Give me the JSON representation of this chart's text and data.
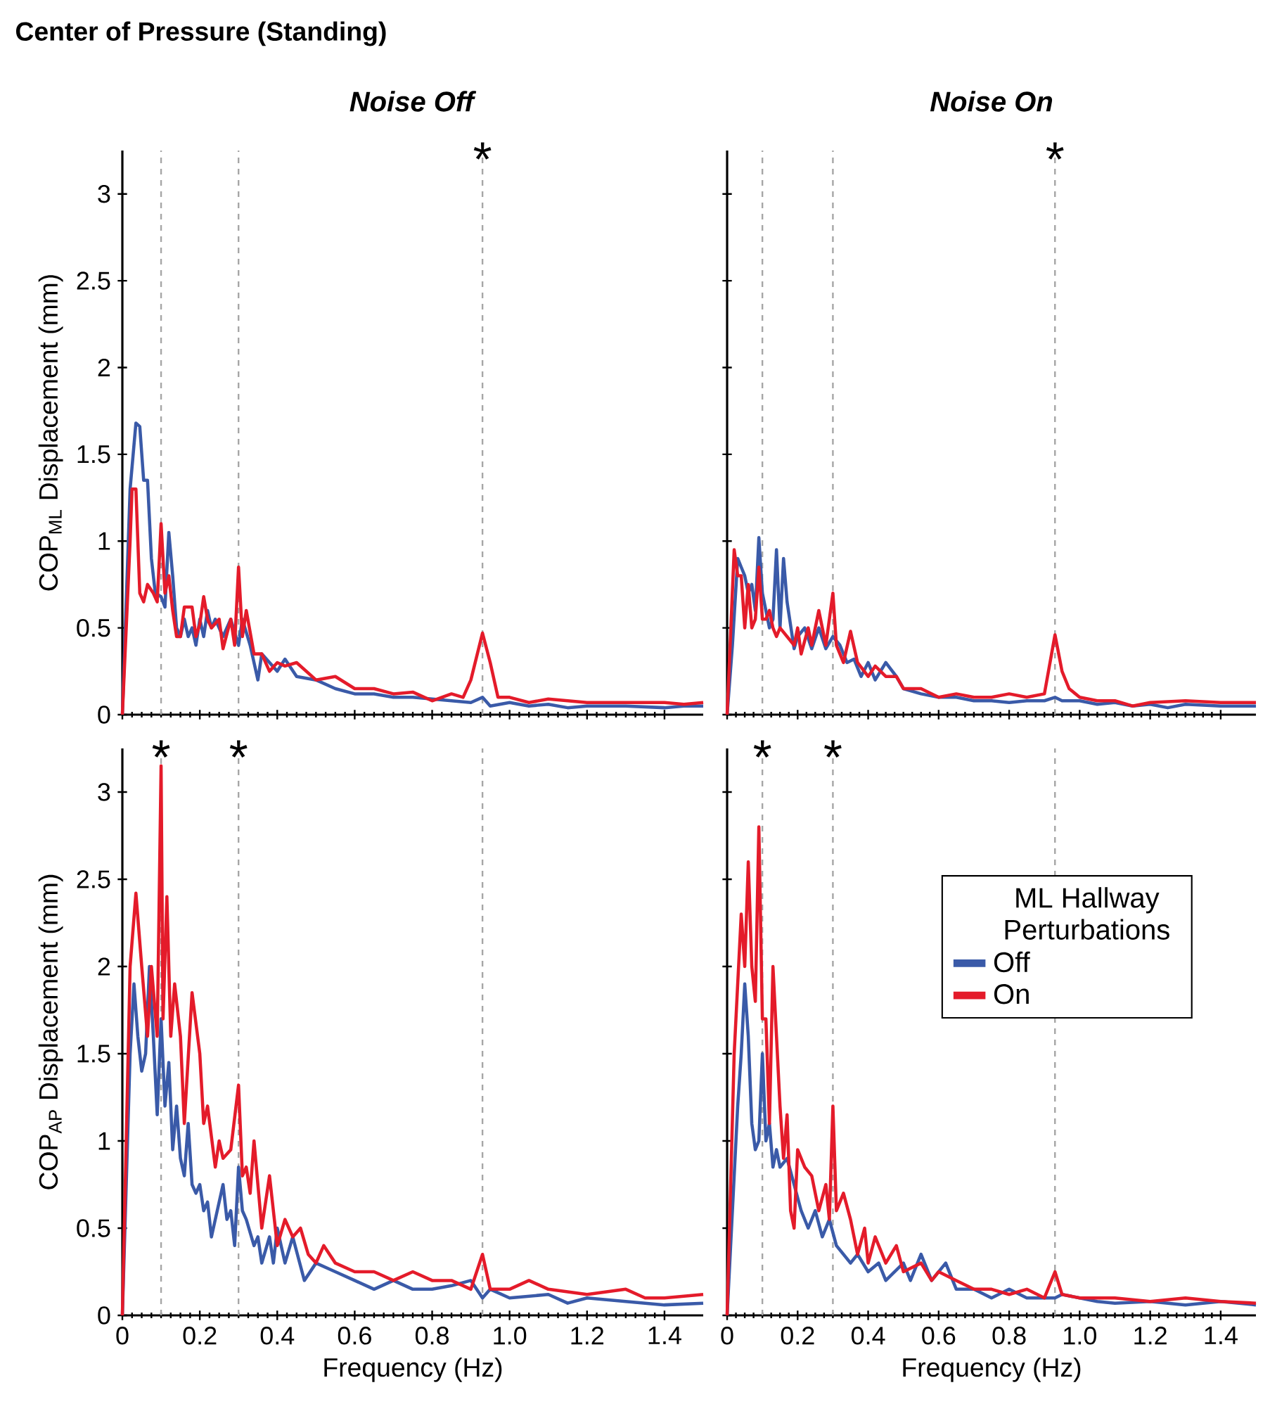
{
  "chart_data": [
    {
      "type": "line",
      "title": "Center of Pressure (Standing)",
      "subtitle": "*Noise Off*",
      "ylabel": "COP$_{ML}$ Displacement (mm)",
      "xlim": [
        0,
        1.5
      ],
      "ylim": [
        0,
        3.25
      ],
      "xticks": [
        0,
        0.2,
        0.4,
        0.6,
        0.8,
        1.0,
        1.2,
        1.4
      ],
      "yticks": [
        0,
        0.5,
        1,
        1.5,
        2,
        2.5,
        3
      ],
      "tick_labels": "y",
      "ref_lines": [
        {
          "axis": "x",
          "value": 0.1,
          "color": "#a6a6a6",
          "line_style": "dashed"
        },
        {
          "axis": "x",
          "value": 0.3,
          "color": "#a6a6a6",
          "line_style": "dashed"
        },
        {
          "axis": "x",
          "value": 0.93,
          "color": "#a6a6a6",
          "line_style": "dashed"
        }
      ],
      "annotations": [
        {
          "text": "*",
          "x": 0.93,
          "y": 3.2
        }
      ],
      "series": [
        {
          "color": "#3a5aa8",
          "x": [
            0,
            0.02,
            0.035,
            0.045,
            0.055,
            0.065,
            0.075,
            0.085,
            0.1,
            0.11,
            0.12,
            0.13,
            0.14,
            0.15,
            0.16,
            0.17,
            0.18,
            0.19,
            0.2,
            0.21,
            0.22,
            0.23,
            0.24,
            0.26,
            0.28,
            0.3,
            0.31,
            0.33,
            0.35,
            0.36,
            0.38,
            0.4,
            0.42,
            0.45,
            0.5,
            0.55,
            0.6,
            0.65,
            0.7,
            0.75,
            0.8,
            0.85,
            0.9,
            0.93,
            0.95,
            1.0,
            1.05,
            1.1,
            1.15,
            1.2,
            1.3,
            1.4,
            1.45,
            1.5
          ],
          "values": [
            0,
            1.3,
            1.68,
            1.66,
            1.35,
            1.35,
            0.9,
            0.7,
            0.68,
            0.62,
            1.05,
            0.8,
            0.5,
            0.45,
            0.55,
            0.45,
            0.5,
            0.4,
            0.55,
            0.45,
            0.6,
            0.5,
            0.55,
            0.45,
            0.55,
            0.4,
            0.55,
            0.4,
            0.2,
            0.35,
            0.3,
            0.25,
            0.32,
            0.22,
            0.2,
            0.15,
            0.12,
            0.12,
            0.1,
            0.1,
            0.09,
            0.08,
            0.07,
            0.1,
            0.05,
            0.07,
            0.05,
            0.06,
            0.04,
            0.05,
            0.05,
            0.04,
            0.05,
            0.05
          ]
        },
        {
          "color": "#e41b2a",
          "x": [
            0,
            0.02,
            0.025,
            0.035,
            0.045,
            0.055,
            0.065,
            0.08,
            0.09,
            0.1,
            0.11,
            0.12,
            0.13,
            0.14,
            0.15,
            0.16,
            0.18,
            0.19,
            0.2,
            0.21,
            0.22,
            0.23,
            0.25,
            0.26,
            0.28,
            0.29,
            0.3,
            0.31,
            0.32,
            0.34,
            0.36,
            0.38,
            0.4,
            0.42,
            0.45,
            0.5,
            0.55,
            0.6,
            0.65,
            0.7,
            0.75,
            0.8,
            0.85,
            0.88,
            0.9,
            0.93,
            0.95,
            0.97,
            1.0,
            1.05,
            1.1,
            1.15,
            1.2,
            1.3,
            1.4,
            1.45,
            1.5
          ],
          "values": [
            0,
            1.0,
            1.3,
            1.3,
            0.7,
            0.65,
            0.75,
            0.7,
            0.65,
            1.1,
            0.7,
            0.8,
            0.6,
            0.45,
            0.45,
            0.62,
            0.62,
            0.45,
            0.52,
            0.68,
            0.55,
            0.5,
            0.55,
            0.38,
            0.55,
            0.4,
            0.85,
            0.45,
            0.6,
            0.35,
            0.35,
            0.25,
            0.3,
            0.28,
            0.3,
            0.2,
            0.22,
            0.15,
            0.15,
            0.12,
            0.13,
            0.08,
            0.12,
            0.1,
            0.2,
            0.47,
            0.3,
            0.1,
            0.1,
            0.07,
            0.09,
            0.08,
            0.07,
            0.07,
            0.07,
            0.06,
            0.07
          ]
        }
      ]
    },
    {
      "type": "line",
      "subtitle": "*Noise On*",
      "xlim": [
        0,
        1.5
      ],
      "ylim": [
        0,
        3.25
      ],
      "xticks": [
        0,
        0.2,
        0.4,
        0.6,
        0.8,
        1.0,
        1.2,
        1.4
      ],
      "yticks": [
        0,
        0.5,
        1,
        1.5,
        2,
        2.5,
        3
      ],
      "tick_labels": false,
      "ref_lines": [
        {
          "axis": "x",
          "value": 0.1,
          "color": "#a6a6a6",
          "line_style": "dashed"
        },
        {
          "axis": "x",
          "value": 0.3,
          "color": "#a6a6a6",
          "line_style": "dashed"
        },
        {
          "axis": "x",
          "value": 0.93,
          "color": "#a6a6a6",
          "line_style": "dashed"
        }
      ],
      "annotations": [
        {
          "text": "*",
          "x": 0.93,
          "y": 3.2
        }
      ],
      "series": [
        {
          "color": "#3a5aa8",
          "x": [
            0,
            0.015,
            0.03,
            0.04,
            0.05,
            0.06,
            0.07,
            0.08,
            0.09,
            0.1,
            0.11,
            0.12,
            0.13,
            0.14,
            0.15,
            0.16,
            0.17,
            0.19,
            0.2,
            0.22,
            0.24,
            0.26,
            0.28,
            0.3,
            0.32,
            0.34,
            0.36,
            0.38,
            0.4,
            0.42,
            0.45,
            0.48,
            0.5,
            0.55,
            0.6,
            0.65,
            0.7,
            0.75,
            0.8,
            0.85,
            0.9,
            0.93,
            0.95,
            1.0,
            1.05,
            1.1,
            1.15,
            1.2,
            1.25,
            1.3,
            1.4,
            1.5
          ],
          "values": [
            0,
            0.4,
            0.9,
            0.85,
            0.8,
            0.7,
            0.75,
            0.6,
            1.02,
            0.7,
            0.6,
            0.5,
            0.55,
            0.95,
            0.5,
            0.9,
            0.65,
            0.38,
            0.45,
            0.5,
            0.38,
            0.5,
            0.38,
            0.45,
            0.4,
            0.3,
            0.32,
            0.22,
            0.3,
            0.2,
            0.3,
            0.22,
            0.15,
            0.12,
            0.1,
            0.1,
            0.08,
            0.08,
            0.07,
            0.08,
            0.08,
            0.1,
            0.08,
            0.08,
            0.06,
            0.07,
            0.05,
            0.06,
            0.04,
            0.06,
            0.05,
            0.05
          ]
        },
        {
          "color": "#e41b2a",
          "x": [
            0,
            0.02,
            0.03,
            0.04,
            0.05,
            0.06,
            0.07,
            0.08,
            0.09,
            0.1,
            0.11,
            0.12,
            0.13,
            0.14,
            0.15,
            0.17,
            0.19,
            0.2,
            0.21,
            0.23,
            0.24,
            0.26,
            0.28,
            0.3,
            0.31,
            0.33,
            0.35,
            0.37,
            0.4,
            0.42,
            0.45,
            0.48,
            0.5,
            0.55,
            0.6,
            0.65,
            0.7,
            0.75,
            0.8,
            0.85,
            0.9,
            0.93,
            0.95,
            0.97,
            1.0,
            1.05,
            1.1,
            1.15,
            1.2,
            1.3,
            1.4,
            1.5
          ],
          "values": [
            0,
            0.95,
            0.8,
            0.8,
            0.5,
            0.75,
            0.5,
            0.55,
            0.85,
            0.55,
            0.55,
            0.6,
            0.5,
            0.45,
            0.5,
            0.45,
            0.4,
            0.5,
            0.35,
            0.5,
            0.4,
            0.6,
            0.4,
            0.7,
            0.4,
            0.3,
            0.48,
            0.3,
            0.22,
            0.28,
            0.22,
            0.22,
            0.15,
            0.15,
            0.1,
            0.12,
            0.1,
            0.1,
            0.12,
            0.1,
            0.12,
            0.46,
            0.25,
            0.15,
            0.1,
            0.08,
            0.08,
            0.05,
            0.07,
            0.08,
            0.07,
            0.07
          ]
        }
      ]
    },
    {
      "type": "line",
      "xlabel": "Frequency (Hz)",
      "ylabel": "COP$_{AP}$ Displacement (mm)",
      "xlim": [
        0,
        1.5
      ],
      "ylim": [
        0,
        3.25
      ],
      "xticks": [
        0,
        0.2,
        0.4,
        0.6,
        0.8,
        {
          "value": 1.0,
          "label": "1.0"
        },
        1.2,
        1.4
      ],
      "yticks": [
        0,
        0.5,
        1,
        1.5,
        2,
        2.5,
        3
      ],
      "ref_lines": [
        {
          "axis": "x",
          "value": 0.1,
          "color": "#a6a6a6",
          "line_style": "dashed"
        },
        {
          "axis": "x",
          "value": 0.3,
          "color": "#a6a6a6",
          "line_style": "dashed"
        },
        {
          "axis": "x",
          "value": 0.93,
          "color": "#a6a6a6",
          "line_style": "dashed"
        }
      ],
      "annotations": [
        {
          "text": "*",
          "x": 0.1,
          "y": 3.2
        },
        {
          "text": "*",
          "x": 0.3,
          "y": 3.2
        }
      ],
      "series": [
        {
          "color": "#3a5aa8",
          "x": [
            0,
            0.02,
            0.03,
            0.04,
            0.05,
            0.06,
            0.07,
            0.08,
            0.09,
            0.1,
            0.11,
            0.12,
            0.13,
            0.14,
            0.15,
            0.16,
            0.17,
            0.18,
            0.19,
            0.2,
            0.21,
            0.22,
            0.23,
            0.24,
            0.26,
            0.27,
            0.28,
            0.29,
            0.3,
            0.31,
            0.32,
            0.34,
            0.35,
            0.36,
            0.38,
            0.39,
            0.4,
            0.42,
            0.44,
            0.47,
            0.5,
            0.55,
            0.6,
            0.65,
            0.7,
            0.75,
            0.8,
            0.85,
            0.9,
            0.93,
            0.95,
            1.0,
            1.1,
            1.15,
            1.2,
            1.3,
            1.4,
            1.5
          ],
          "values": [
            0,
            1.5,
            1.9,
            1.6,
            1.4,
            1.5,
            2.0,
            1.6,
            1.15,
            1.7,
            1.2,
            1.45,
            0.95,
            1.2,
            0.9,
            0.8,
            1.1,
            0.75,
            0.7,
            0.75,
            0.6,
            0.65,
            0.45,
            0.55,
            0.75,
            0.55,
            0.6,
            0.4,
            0.85,
            0.6,
            0.55,
            0.4,
            0.45,
            0.3,
            0.45,
            0.3,
            0.5,
            0.3,
            0.45,
            0.2,
            0.3,
            0.25,
            0.2,
            0.15,
            0.2,
            0.15,
            0.15,
            0.17,
            0.2,
            0.1,
            0.15,
            0.1,
            0.12,
            0.07,
            0.1,
            0.08,
            0.06,
            0.07
          ]
        },
        {
          "color": "#e41b2a",
          "x": [
            0,
            0.02,
            0.035,
            0.05,
            0.065,
            0.075,
            0.09,
            0.1,
            0.105,
            0.115,
            0.125,
            0.135,
            0.15,
            0.16,
            0.18,
            0.2,
            0.21,
            0.22,
            0.24,
            0.25,
            0.26,
            0.28,
            0.3,
            0.31,
            0.32,
            0.33,
            0.34,
            0.36,
            0.38,
            0.4,
            0.42,
            0.44,
            0.46,
            0.48,
            0.5,
            0.52,
            0.55,
            0.6,
            0.65,
            0.7,
            0.75,
            0.8,
            0.85,
            0.9,
            0.93,
            0.95,
            1.0,
            1.05,
            1.1,
            1.2,
            1.3,
            1.35,
            1.4,
            1.5
          ],
          "values": [
            0,
            2.0,
            2.42,
            2.0,
            1.6,
            2.0,
            1.6,
            3.15,
            1.7,
            2.4,
            1.6,
            1.9,
            1.6,
            1.1,
            1.85,
            1.5,
            1.1,
            1.2,
            0.85,
            1.0,
            0.9,
            0.95,
            1.32,
            0.8,
            0.85,
            0.7,
            1.0,
            0.5,
            0.8,
            0.4,
            0.55,
            0.45,
            0.5,
            0.35,
            0.3,
            0.4,
            0.3,
            0.25,
            0.25,
            0.2,
            0.25,
            0.2,
            0.2,
            0.15,
            0.35,
            0.15,
            0.15,
            0.2,
            0.15,
            0.12,
            0.15,
            0.1,
            0.1,
            0.12
          ]
        }
      ]
    },
    {
      "type": "line",
      "xlabel": "Frequency (Hz)",
      "xlim": [
        0,
        1.5
      ],
      "ylim": [
        0,
        3.25
      ],
      "xticks": [
        0,
        0.2,
        0.4,
        0.6,
        0.8,
        {
          "value": 1.0,
          "label": "1.0"
        },
        1.2,
        1.4
      ],
      "yticks": [
        0,
        0.5,
        1,
        1.5,
        2,
        2.5,
        3
      ],
      "tick_labels": "x",
      "ref_lines": [
        {
          "axis": "x",
          "value": 0.1,
          "color": "#a6a6a6",
          "line_style": "dashed"
        },
        {
          "axis": "x",
          "value": 0.3,
          "color": "#a6a6a6",
          "line_style": "dashed"
        },
        {
          "axis": "x",
          "value": 0.93,
          "color": "#a6a6a6",
          "line_style": "dashed"
        }
      ],
      "annotations": [
        {
          "text": "*",
          "x": 0.1,
          "y": 3.2
        },
        {
          "text": "*",
          "x": 0.3,
          "y": 3.2
        }
      ],
      "legend": "right",
      "legend_title": "ML Hallway Perturbations",
      "series": [
        {
          "name": "Off",
          "color": "#3a5aa8",
          "x": [
            0,
            0.03,
            0.04,
            0.05,
            0.06,
            0.07,
            0.08,
            0.09,
            0.1,
            0.11,
            0.12,
            0.13,
            0.14,
            0.15,
            0.17,
            0.19,
            0.21,
            0.23,
            0.25,
            0.27,
            0.29,
            0.31,
            0.33,
            0.35,
            0.37,
            0.4,
            0.43,
            0.45,
            0.5,
            0.52,
            0.55,
            0.58,
            0.62,
            0.65,
            0.7,
            0.75,
            0.8,
            0.85,
            0.9,
            0.93,
            0.95,
            1.0,
            1.05,
            1.1,
            1.2,
            1.3,
            1.4,
            1.5
          ],
          "values": [
            0,
            1.2,
            1.5,
            1.9,
            1.6,
            1.1,
            0.95,
            1.0,
            1.5,
            1.0,
            1.1,
            0.85,
            0.95,
            0.85,
            0.9,
            0.75,
            0.6,
            0.5,
            0.6,
            0.45,
            0.55,
            0.4,
            0.35,
            0.3,
            0.35,
            0.25,
            0.3,
            0.2,
            0.3,
            0.2,
            0.35,
            0.2,
            0.3,
            0.15,
            0.15,
            0.1,
            0.15,
            0.1,
            0.1,
            0.1,
            0.12,
            0.1,
            0.08,
            0.07,
            0.08,
            0.06,
            0.08,
            0.06
          ]
        },
        {
          "name": "On",
          "color": "#e41b2a",
          "x": [
            0,
            0.02,
            0.04,
            0.05,
            0.06,
            0.07,
            0.08,
            0.09,
            0.1,
            0.11,
            0.12,
            0.13,
            0.14,
            0.15,
            0.16,
            0.17,
            0.18,
            0.19,
            0.2,
            0.22,
            0.24,
            0.26,
            0.28,
            0.29,
            0.3,
            0.31,
            0.33,
            0.35,
            0.37,
            0.39,
            0.4,
            0.42,
            0.45,
            0.48,
            0.5,
            0.55,
            0.58,
            0.6,
            0.65,
            0.7,
            0.75,
            0.8,
            0.85,
            0.9,
            0.93,
            0.95,
            1.0,
            1.1,
            1.2,
            1.3,
            1.4,
            1.5
          ],
          "values": [
            0,
            1.5,
            2.3,
            2.0,
            2.6,
            2.0,
            1.8,
            2.8,
            1.7,
            1.7,
            1.1,
            2.0,
            1.6,
            1.2,
            0.9,
            1.15,
            0.6,
            0.5,
            0.95,
            0.85,
            0.8,
            0.6,
            0.75,
            0.55,
            1.2,
            0.6,
            0.7,
            0.55,
            0.35,
            0.5,
            0.3,
            0.45,
            0.3,
            0.4,
            0.25,
            0.3,
            0.2,
            0.25,
            0.2,
            0.15,
            0.15,
            0.12,
            0.15,
            0.1,
            0.25,
            0.12,
            0.1,
            0.1,
            0.08,
            0.1,
            0.08,
            0.07
          ]
        }
      ]
    }
  ]
}
